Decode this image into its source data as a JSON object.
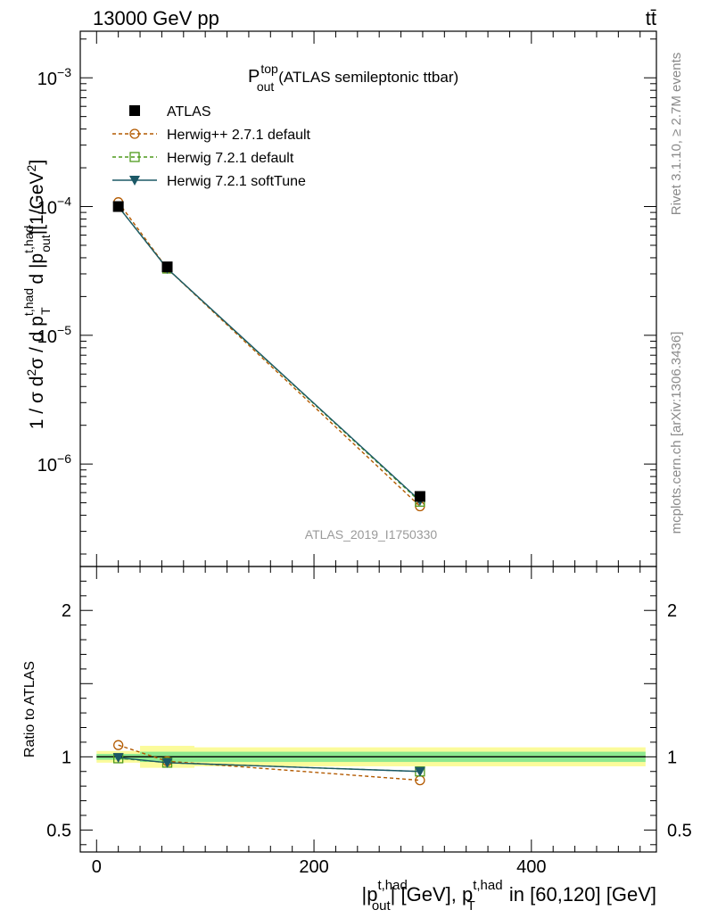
{
  "header": {
    "energy_label": "13000 GeV pp",
    "process_label": "tt̄"
  },
  "side": {
    "rivet_label": "Rivet 3.1.10, ≥ 2.7M events",
    "mcplots_label": "mcplots.cern.ch [arXiv:1306.3436]"
  },
  "watermark": "ATLAS_2019_I1750330",
  "chart_data": [
    {
      "type": "line",
      "panel": "main",
      "title": "P_out^top (ATLAS semileptonic ttbar)",
      "title_main": "P",
      "title_sup": "top",
      "title_sub": "out",
      "title_rest": "(ATLAS semileptonic ttbar)",
      "ylabel": "1 / σ d²σ / d p_T^t,had d |p_out^t,had| [1/GeV²]",
      "yscale": "log",
      "ylim": [
        1.6e-07,
        0.0023
      ],
      "xlim": [
        -15,
        515
      ],
      "grid": false,
      "legend_position": "top-left",
      "x": [
        20,
        65,
        297.5
      ],
      "ytick_labels": [
        {
          "value": 1e-06,
          "base": "10",
          "exp": "−6"
        },
        {
          "value": 1e-05,
          "base": "10",
          "exp": "−5"
        },
        {
          "value": 0.0001,
          "base": "10",
          "exp": "−4"
        },
        {
          "value": 0.001,
          "base": "10",
          "exp": "−3"
        }
      ],
      "series": [
        {
          "name": "ATLAS",
          "marker": "square-filled",
          "color": "#000000",
          "values": [
            0.0001,
            3.4e-05,
            5.6e-07
          ]
        },
        {
          "name": "Herwig++ 2.7.1 default",
          "marker": "circle-open",
          "color": "#b35a00",
          "dashed": true,
          "values": [
            0.000108,
            3.3e-05,
            4.7e-07
          ]
        },
        {
          "name": "Herwig 7.2.1 default",
          "marker": "square-open",
          "color": "#4f9a1c",
          "dashed": true,
          "values": [
            0.0001,
            3.3e-05,
            5.1e-07
          ]
        },
        {
          "name": "Herwig 7.2.1 softTune",
          "marker": "triangle-down-filled",
          "color": "#1b5866",
          "dashed": false,
          "values": [
            0.0001,
            3.3e-05,
            5.2e-07
          ]
        }
      ]
    },
    {
      "type": "line",
      "panel": "ratio",
      "ylabel": "Ratio to ATLAS",
      "ylim": [
        0.35,
        2.3
      ],
      "xlim": [
        -15,
        515
      ],
      "xlabel_parts": [
        "|p",
        "t,had",
        "out",
        "| [GeV], p",
        "t,had",
        "T",
        " in [60,120] [GeV]"
      ],
      "xticks": [
        0,
        200,
        400
      ],
      "yticks": [
        0.5,
        1,
        2
      ],
      "x": [
        20,
        65,
        297.5
      ],
      "bands": [
        {
          "x": [
            0,
            40
          ],
          "stat": [
            0.98,
            1.02
          ],
          "total": [
            0.96,
            1.04
          ]
        },
        {
          "x": [
            40,
            90
          ],
          "stat": [
            0.965,
            1.035
          ],
          "total": [
            0.925,
            1.075
          ]
        },
        {
          "x": [
            90,
            505
          ],
          "stat": [
            0.965,
            1.035
          ],
          "total": [
            0.935,
            1.065
          ]
        }
      ],
      "series": [
        {
          "name": "Herwig++ 2.7.1 default",
          "values": [
            1.08,
            0.97,
            0.84
          ]
        },
        {
          "name": "Herwig 7.2.1 default",
          "values": [
            0.99,
            0.96,
            0.9
          ]
        },
        {
          "name": "Herwig 7.2.1 softTune",
          "values": [
            0.995,
            0.96,
            0.9
          ]
        }
      ],
      "band_colors": {
        "stat": "#8de88f",
        "total": "#fbfb9b"
      }
    }
  ]
}
